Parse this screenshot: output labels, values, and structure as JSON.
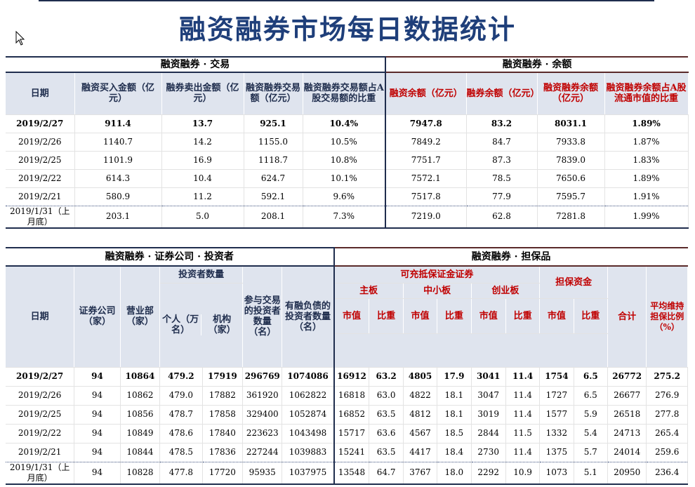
{
  "title": "融资融券市场每日数据统计",
  "table1": {
    "left_section": "融资融券 · 交易",
    "right_section": "融资融券 · 余额",
    "headers": {
      "date": "日期",
      "buy": "融资买入金额（亿元）",
      "sell": "融券卖出金额（亿元）",
      "trade": "融资融券交易额（亿元）",
      "trade_ratio": "融资融券交易额占A股交易额的比重",
      "fin_bal": "融资余额（亿元）",
      "sec_bal": "融券余额（亿元）",
      "total_bal": "融资融券余额（亿元）",
      "bal_ratio": "融资融券余额占A股流通市值的比重"
    },
    "rows": [
      {
        "date": "2019/2/27",
        "buy": "911.4",
        "sell": "13.7",
        "trade": "925.1",
        "trade_ratio": "10.4%",
        "fin_bal": "7947.8",
        "sec_bal": "83.2",
        "total_bal": "8031.1",
        "bal_ratio": "1.89%"
      },
      {
        "date": "2019/2/26",
        "buy": "1140.7",
        "sell": "14.2",
        "trade": "1155.0",
        "trade_ratio": "10.5%",
        "fin_bal": "7849.2",
        "sec_bal": "84.7",
        "total_bal": "7933.8",
        "bal_ratio": "1.87%"
      },
      {
        "date": "2019/2/25",
        "buy": "1101.9",
        "sell": "16.9",
        "trade": "1118.7",
        "trade_ratio": "10.8%",
        "fin_bal": "7751.7",
        "sec_bal": "87.3",
        "total_bal": "7839.0",
        "bal_ratio": "1.83%"
      },
      {
        "date": "2019/2/22",
        "buy": "614.3",
        "sell": "10.4",
        "trade": "624.7",
        "trade_ratio": "10.1%",
        "fin_bal": "7572.1",
        "sec_bal": "78.5",
        "total_bal": "7650.6",
        "bal_ratio": "1.89%"
      },
      {
        "date": "2019/2/21",
        "buy": "580.9",
        "sell": "11.2",
        "trade": "592.1",
        "trade_ratio": "9.6%",
        "fin_bal": "7517.8",
        "sec_bal": "77.9",
        "total_bal": "7595.7",
        "bal_ratio": "1.91%"
      },
      {
        "date": "2019/1/31（上月底）",
        "buy": "203.1",
        "sell": "5.0",
        "trade": "208.1",
        "trade_ratio": "7.3%",
        "fin_bal": "7219.0",
        "sec_bal": "62.8",
        "total_bal": "7281.8",
        "bal_ratio": "1.99%"
      }
    ]
  },
  "table2": {
    "left_section": "融资融券 · 证券公司 · 投资者",
    "right_section": "融资融券 · 担保品",
    "headers": {
      "date": "日期",
      "brokers": "证券公司（家）",
      "branches": "营业部（家）",
      "investor_count": "投资者数量",
      "individual": "个人（万名）",
      "institution": "机构（家）",
      "participating": "参与交易的投资者数量（名）",
      "with_debt": "有融负债的投资者数量（名）",
      "collateral_sec": "可充抵保证金证券",
      "main_board": "主板",
      "sme_board": "中小板",
      "chinext": "创业板",
      "margin_cash": "担保资金",
      "mv": "市值",
      "ratio": "比重",
      "total": "合计",
      "avg_ratio": "平均维持担保比例（%）"
    },
    "rows": [
      {
        "date": "2019/2/27",
        "brokers": "94",
        "branches": "10864",
        "individual": "479.2",
        "institution": "17919",
        "participating": "296769",
        "with_debt": "1074086",
        "main_mv": "16912",
        "main_r": "63.2",
        "sme_mv": "4805",
        "sme_r": "17.9",
        "gem_mv": "3041",
        "gem_r": "11.4",
        "cash_mv": "1754",
        "cash_r": "6.5",
        "total": "26772",
        "avg": "275.2"
      },
      {
        "date": "2019/2/26",
        "brokers": "94",
        "branches": "10862",
        "individual": "479.0",
        "institution": "17882",
        "participating": "361920",
        "with_debt": "1062822",
        "main_mv": "16818",
        "main_r": "63.0",
        "sme_mv": "4822",
        "sme_r": "18.1",
        "gem_mv": "3047",
        "gem_r": "11.4",
        "cash_mv": "1727",
        "cash_r": "6.5",
        "total": "26677",
        "avg": "276.9"
      },
      {
        "date": "2019/2/25",
        "brokers": "94",
        "branches": "10856",
        "individual": "478.7",
        "institution": "17858",
        "participating": "329400",
        "with_debt": "1052874",
        "main_mv": "16852",
        "main_r": "63.5",
        "sme_mv": "4812",
        "sme_r": "18.1",
        "gem_mv": "3019",
        "gem_r": "11.4",
        "cash_mv": "1577",
        "cash_r": "5.9",
        "total": "26518",
        "avg": "277.8"
      },
      {
        "date": "2019/2/22",
        "brokers": "94",
        "branches": "10849",
        "individual": "478.6",
        "institution": "17840",
        "participating": "223623",
        "with_debt": "1043498",
        "main_mv": "15717",
        "main_r": "63.6",
        "sme_mv": "4567",
        "sme_r": "18.5",
        "gem_mv": "2844",
        "gem_r": "11.5",
        "cash_mv": "1332",
        "cash_r": "5.4",
        "total": "24713",
        "avg": "265.4"
      },
      {
        "date": "2019/2/21",
        "brokers": "94",
        "branches": "10844",
        "individual": "478.5",
        "institution": "17836",
        "participating": "227244",
        "with_debt": "1039883",
        "main_mv": "15241",
        "main_r": "63.5",
        "sme_mv": "4417",
        "sme_r": "18.4",
        "gem_mv": "2730",
        "gem_r": "11.4",
        "cash_mv": "1375",
        "cash_r": "5.7",
        "total": "24014",
        "avg": "259.6"
      },
      {
        "date": "2019/1/31（上月底）",
        "brokers": "94",
        "branches": "10828",
        "individual": "477.8",
        "institution": "17720",
        "participating": "95935",
        "with_debt": "1037975",
        "main_mv": "13548",
        "main_r": "64.7",
        "sme_mv": "3767",
        "sme_r": "18.0",
        "gem_mv": "2292",
        "gem_r": "10.9",
        "cash_mv": "1073",
        "cash_r": "5.1",
        "total": "20950",
        "avg": "236.4"
      }
    ]
  }
}
